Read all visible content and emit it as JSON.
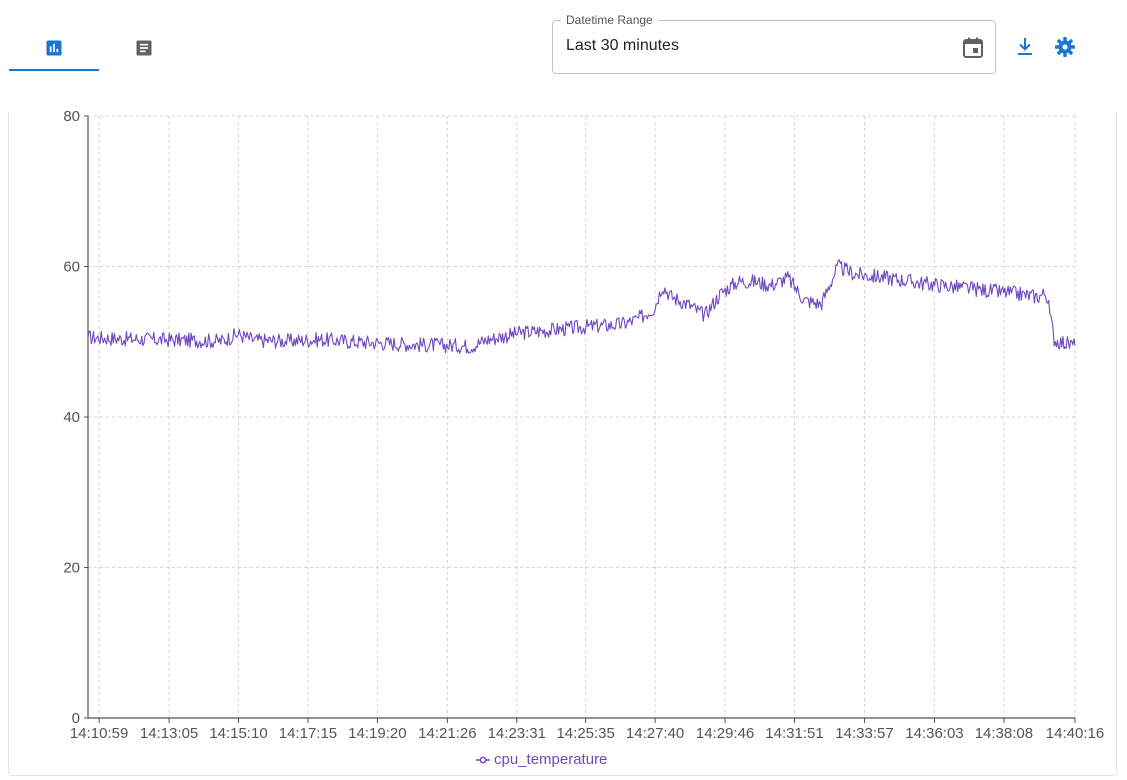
{
  "tabs": [
    {
      "icon": "bar-chart-icon",
      "active": true
    },
    {
      "icon": "log-document-icon",
      "active": false
    }
  ],
  "datetime_range": {
    "label": "Datetime Range",
    "value": "Last 30 minutes"
  },
  "toolbar": {
    "download_icon": "download-icon",
    "settings_icon": "gear-icon"
  },
  "colors": {
    "accent": "#1976d2",
    "series": "#7048c0",
    "grid": "#d4d4d4",
    "axis": "#555555"
  },
  "chart_data": {
    "type": "line",
    "title": "",
    "xlabel": "",
    "ylabel": "",
    "ylim": [
      0,
      80
    ],
    "yticks": [
      "0",
      "20",
      "40",
      "60",
      "80"
    ],
    "xticks": [
      "14:10:59",
      "14:13:05",
      "14:15:10",
      "14:17:15",
      "14:19:20",
      "14:21:26",
      "14:23:31",
      "14:25:35",
      "14:27:40",
      "14:29:46",
      "14:31:51",
      "14:33:57",
      "14:36:03",
      "14:38:08",
      "14:40:16"
    ],
    "grid": true,
    "legend_position": "bottom-center",
    "series": [
      {
        "name": "cpu_temperature",
        "color": "#7048c0",
        "x": [
          "14:10:39",
          "14:11:39",
          "14:12:39",
          "14:13:39",
          "14:14:39",
          "14:15:09",
          "14:15:39",
          "14:16:39",
          "14:17:39",
          "14:18:39",
          "14:19:39",
          "14:20:39",
          "14:21:39",
          "14:22:09",
          "14:22:39",
          "14:23:39",
          "14:24:39",
          "14:25:39",
          "14:26:39",
          "14:27:09",
          "14:27:39",
          "14:27:53",
          "14:28:09",
          "14:28:39",
          "14:29:09",
          "14:29:39",
          "14:30:09",
          "14:30:39",
          "14:31:09",
          "14:31:39",
          "14:32:09",
          "14:32:39",
          "14:33:09",
          "14:33:39",
          "14:34:39",
          "14:35:39",
          "14:36:39",
          "14:37:39",
          "14:38:39",
          "14:39:09",
          "14:39:24",
          "14:39:39",
          "14:40:16"
        ],
        "y": [
          50.6,
          50.4,
          50.3,
          50.2,
          50.1,
          51.0,
          50.2,
          50.1,
          50.3,
          50.0,
          49.8,
          49.6,
          49.5,
          49.4,
          50.3,
          51.2,
          51.6,
          52.0,
          52.3,
          53.0,
          54.5,
          57.5,
          56.0,
          55.0,
          53.5,
          56.5,
          58.0,
          58.0,
          57.5,
          58.5,
          55.5,
          55.0,
          60.0,
          59.0,
          58.5,
          57.8,
          57.3,
          56.8,
          56.3,
          56.0,
          56.5,
          50.2,
          49.5
        ]
      }
    ]
  }
}
